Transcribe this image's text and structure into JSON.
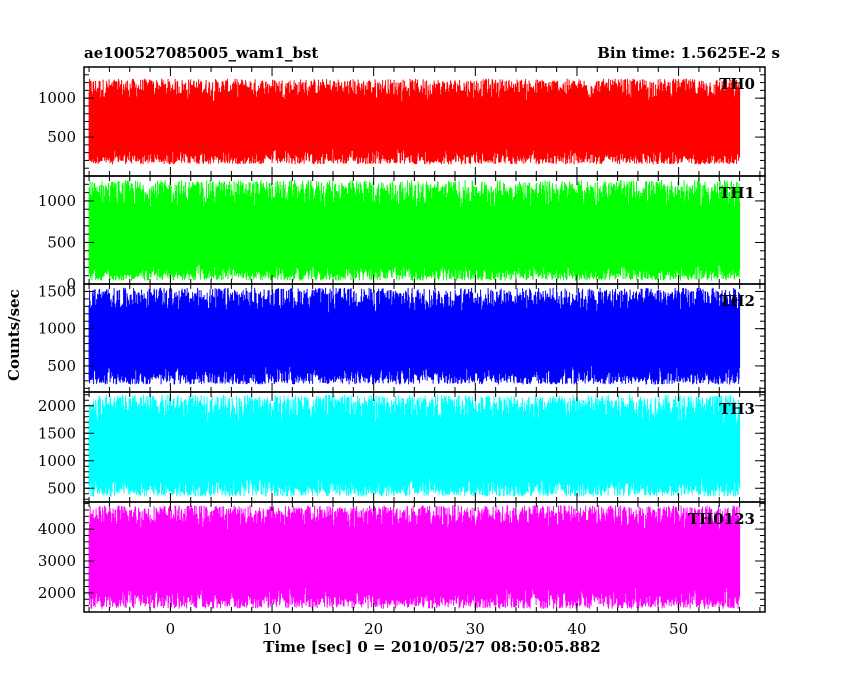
{
  "header": {
    "title": "ae100527085005_wam1_bst",
    "bin_time": "Bin time: 1.5625E-2 s"
  },
  "chart_data": {
    "type": "line",
    "xlabel": "Time [sec] 0 = 2010/05/27 08:50:05.882",
    "ylabel": "Counts/sec",
    "xlim": [
      -8.5,
      58.5
    ],
    "x_ticks": [
      0,
      10,
      20,
      30,
      40,
      50
    ],
    "x_data_range": [
      -8.0,
      56.0
    ],
    "panels": [
      {
        "name": "TH0",
        "color": "#ff0000",
        "ylim": [
          0,
          1400
        ],
        "y_ticks": [
          500,
          1000
        ],
        "typical_range": [
          150,
          1250
        ],
        "median": 640
      },
      {
        "name": "TH1",
        "color": "#00ff00",
        "ylim": [
          0,
          1300
        ],
        "y_ticks": [
          0,
          500,
          1000
        ],
        "typical_range": [
          40,
          1250
        ],
        "median": 520
      },
      {
        "name": "TH2",
        "color": "#0000ff",
        "ylim": [
          150,
          1600
        ],
        "y_ticks": [
          500,
          1000,
          1500
        ],
        "typical_range": [
          250,
          1550
        ],
        "median": 830
      },
      {
        "name": "TH3",
        "color": "#00ffff",
        "ylim": [
          250,
          2250
        ],
        "y_ticks": [
          500,
          1000,
          1500,
          2000
        ],
        "typical_range": [
          350,
          2200
        ],
        "median": 1150
      },
      {
        "name": "TH0123",
        "color": "#ff00ff",
        "ylim": [
          1400,
          4850
        ],
        "y_ticks": [
          2000,
          3000,
          4000
        ],
        "typical_range": [
          1500,
          4750
        ],
        "median": 3150
      }
    ]
  }
}
